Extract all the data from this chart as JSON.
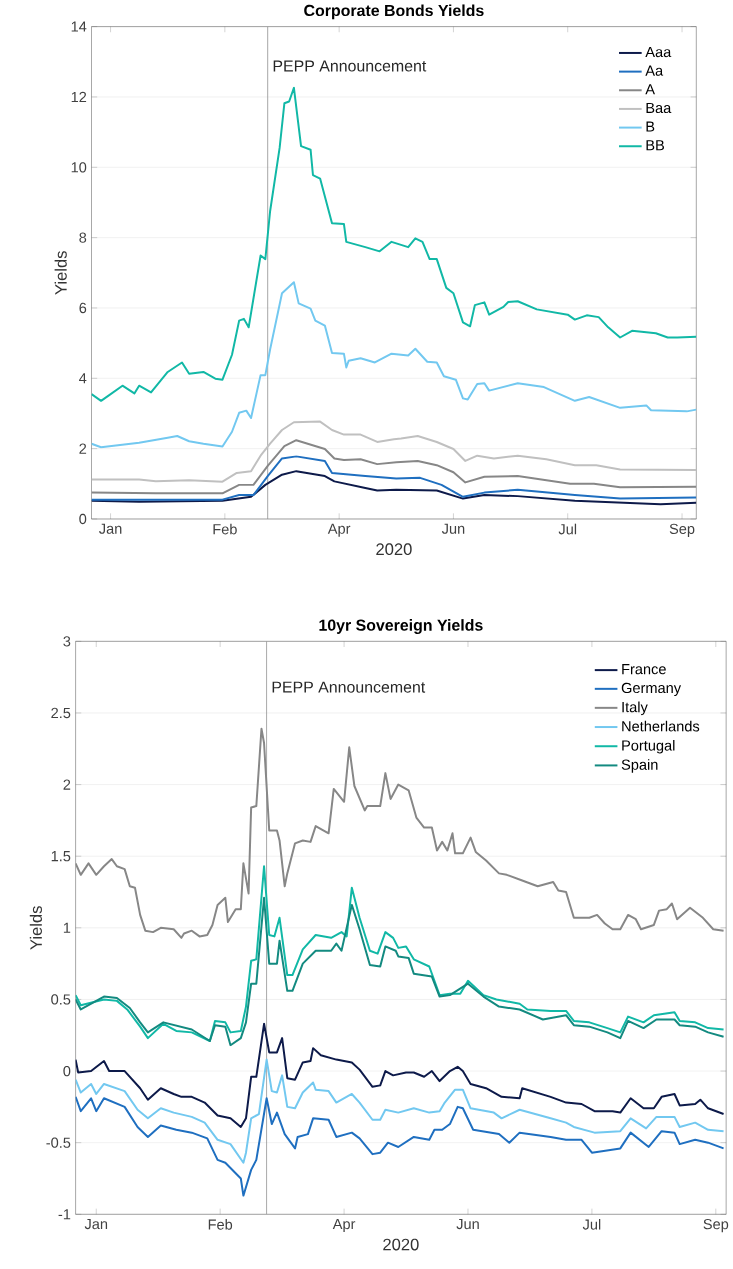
{
  "chart_data": [
    {
      "type": "line",
      "title": "Corporate Bonds Yields",
      "xlabel": "2020",
      "ylabel": "Yields",
      "xlim": [
        "2020-01-04",
        "2020-09-14"
      ],
      "xticks": [
        {
          "value": "2020-01-12",
          "label": "Jan"
        },
        {
          "value": "2020-02-29",
          "label": "Feb"
        },
        {
          "value": "2020-04-17",
          "label": "Apr"
        },
        {
          "value": "2020-06-04",
          "label": "Jun"
        },
        {
          "value": "2020-07-22",
          "label": "Jul"
        },
        {
          "value": "2020-09-08",
          "label": "Sep"
        }
      ],
      "ylim": [
        0,
        14
      ],
      "yticks": [
        0,
        2,
        4,
        6,
        8,
        10,
        12,
        14
      ],
      "grid": "y",
      "legend": "top right",
      "line_style": "solid",
      "ref_lines": [
        {
          "axis": "x",
          "value": "2020-03-18",
          "label": "PEPP Announcement",
          "color": "#8c8c8c"
        }
      ],
      "series": [
        {
          "name": "Aaa",
          "color": "#0d1a4a",
          "x": [
            "2020-01-04",
            "2020-01-24",
            "2020-02-28",
            "2020-03-11",
            "2020-03-17",
            "2020-03-24",
            "2020-03-30",
            "2020-04-11",
            "2020-04-15",
            "2020-04-28",
            "2020-05-03",
            "2020-05-11",
            "2020-05-28",
            "2020-06-08",
            "2020-06-17",
            "2020-07-01",
            "2020-07-25",
            "2020-08-30",
            "2020-09-14"
          ],
          "values": [
            0.52,
            0.49,
            0.52,
            0.63,
            0.97,
            1.26,
            1.36,
            1.22,
            1.07,
            0.88,
            0.81,
            0.83,
            0.81,
            0.58,
            0.68,
            0.65,
            0.52,
            0.42,
            0.46
          ]
        },
        {
          "name": "Aa",
          "color": "#1f6fc0",
          "x": [
            "2020-01-04",
            "2020-02-28",
            "2020-03-06",
            "2020-03-12",
            "2020-03-18",
            "2020-03-24",
            "2020-03-30",
            "2020-04-11",
            "2020-04-14",
            "2020-04-28",
            "2020-05-11",
            "2020-05-21",
            "2020-05-30",
            "2020-06-08",
            "2020-06-17",
            "2020-07-01",
            "2020-07-25",
            "2020-08-13",
            "2020-09-14"
          ],
          "values": [
            0.55,
            0.55,
            0.68,
            0.68,
            1.22,
            1.72,
            1.78,
            1.65,
            1.31,
            1.22,
            1.15,
            1.17,
            0.97,
            0.63,
            0.75,
            0.83,
            0.68,
            0.58,
            0.61
          ]
        },
        {
          "name": "A",
          "color": "#878787",
          "x": [
            "2020-01-04",
            "2020-01-31",
            "2020-02-28",
            "2020-03-06",
            "2020-03-12",
            "2020-03-18",
            "2020-03-25",
            "2020-03-30",
            "2020-04-11",
            "2020-04-15",
            "2020-04-19",
            "2020-04-26",
            "2020-05-03",
            "2020-05-11",
            "2020-05-20",
            "2020-05-28",
            "2020-06-04",
            "2020-06-09",
            "2020-06-17",
            "2020-07-01",
            "2020-07-23",
            "2020-08-02",
            "2020-08-13",
            "2020-09-14"
          ],
          "values": [
            0.75,
            0.73,
            0.73,
            0.97,
            0.97,
            1.51,
            2.07,
            2.24,
            1.99,
            1.72,
            1.68,
            1.7,
            1.56,
            1.61,
            1.65,
            1.53,
            1.33,
            1.04,
            1.2,
            1.22,
            1.0,
            1.0,
            0.9,
            0.92
          ]
        },
        {
          "name": "Baa",
          "color": "#c0c0c0",
          "x": [
            "2020-01-04",
            "2020-01-24",
            "2020-01-31",
            "2020-02-14",
            "2020-02-28",
            "2020-03-05",
            "2020-03-11",
            "2020-03-15",
            "2020-03-19",
            "2020-03-24",
            "2020-03-29",
            "2020-04-09",
            "2020-04-14",
            "2020-04-19",
            "2020-04-26",
            "2020-05-03",
            "2020-05-10",
            "2020-05-13",
            "2020-05-20",
            "2020-05-28",
            "2020-06-04",
            "2020-06-09",
            "2020-06-14",
            "2020-06-21",
            "2020-07-01",
            "2020-07-13",
            "2020-07-25",
            "2020-08-03",
            "2020-08-13",
            "2020-09-14"
          ],
          "values": [
            1.12,
            1.12,
            1.07,
            1.1,
            1.06,
            1.31,
            1.36,
            1.8,
            2.14,
            2.53,
            2.75,
            2.77,
            2.53,
            2.4,
            2.4,
            2.19,
            2.27,
            2.29,
            2.36,
            2.19,
            1.99,
            1.65,
            1.8,
            1.72,
            1.8,
            1.7,
            1.53,
            1.53,
            1.41,
            1.39
          ]
        },
        {
          "name": "B",
          "color": "#72c8f0",
          "x": [
            "2020-01-04",
            "2020-01-08",
            "2020-01-24",
            "2020-02-05",
            "2020-02-09",
            "2020-02-14",
            "2020-02-20",
            "2020-02-28",
            "2020-03-03",
            "2020-03-06",
            "2020-03-09",
            "2020-03-11",
            "2020-03-15",
            "2020-03-17",
            "2020-03-19",
            "2020-03-24",
            "2020-03-29",
            "2020-03-31",
            "2020-04-05",
            "2020-04-07",
            "2020-04-11",
            "2020-04-14",
            "2020-04-19",
            "2020-04-20",
            "2020-04-21",
            "2020-04-26",
            "2020-05-02",
            "2020-05-09",
            "2020-05-16",
            "2020-05-19",
            "2020-05-24",
            "2020-05-28",
            "2020-05-31",
            "2020-06-05",
            "2020-06-08",
            "2020-06-10",
            "2020-06-14",
            "2020-06-17",
            "2020-06-19",
            "2020-07-01",
            "2020-07-12",
            "2020-07-25",
            "2020-07-31",
            "2020-08-13",
            "2020-08-24",
            "2020-08-26",
            "2020-09-10",
            "2020-09-14"
          ],
          "values": [
            2.14,
            2.04,
            2.17,
            2.31,
            2.36,
            2.21,
            2.14,
            2.06,
            2.48,
            3.02,
            3.08,
            2.87,
            4.09,
            4.09,
            4.82,
            6.42,
            6.73,
            6.13,
            5.98,
            5.64,
            5.5,
            4.72,
            4.7,
            4.31,
            4.5,
            4.57,
            4.45,
            4.7,
            4.65,
            4.84,
            4.47,
            4.45,
            4.06,
            3.96,
            3.43,
            3.4,
            3.84,
            3.86,
            3.65,
            3.86,
            3.75,
            3.36,
            3.47,
            3.16,
            3.23,
            3.09,
            3.06,
            3.11
          ]
        },
        {
          "name": "BB",
          "color": "#11b8a6",
          "x": [
            "2020-01-04",
            "2020-01-08",
            "2020-01-11",
            "2020-01-17",
            "2020-01-22",
            "2020-01-24",
            "2020-01-29",
            "2020-02-05",
            "2020-02-11",
            "2020-02-14",
            "2020-02-20",
            "2020-02-25",
            "2020-02-28",
            "2020-03-03",
            "2020-03-06",
            "2020-03-08",
            "2020-03-10",
            "2020-03-15",
            "2020-03-17",
            "2020-03-19",
            "2020-03-23",
            "2020-03-25",
            "2020-03-27",
            "2020-03-29",
            "2020-04-01",
            "2020-04-05",
            "2020-04-06",
            "2020-04-09",
            "2020-04-14",
            "2020-04-19",
            "2020-04-20",
            "2020-04-28",
            "2020-05-04",
            "2020-05-09",
            "2020-05-16",
            "2020-05-19",
            "2020-05-22",
            "2020-05-25",
            "2020-05-28",
            "2020-06-01",
            "2020-06-04",
            "2020-06-08",
            "2020-06-11",
            "2020-06-13",
            "2020-06-17",
            "2020-06-19",
            "2020-06-25",
            "2020-06-27",
            "2020-07-01",
            "2020-07-09",
            "2020-07-22",
            "2020-07-25",
            "2020-07-30",
            "2020-08-04",
            "2020-08-08",
            "2020-08-13",
            "2020-08-18",
            "2020-08-28",
            "2020-09-02",
            "2020-09-06",
            "2020-09-14"
          ],
          "values": [
            3.55,
            3.36,
            3.5,
            3.79,
            3.57,
            3.79,
            3.6,
            4.18,
            4.45,
            4.13,
            4.18,
            3.99,
            3.96,
            4.67,
            5.64,
            5.69,
            5.45,
            7.49,
            7.39,
            8.75,
            10.55,
            11.82,
            11.87,
            12.26,
            10.6,
            10.5,
            9.78,
            9.68,
            8.41,
            8.39,
            7.88,
            7.73,
            7.61,
            7.88,
            7.73,
            7.98,
            7.88,
            7.39,
            7.39,
            6.57,
            6.42,
            5.59,
            5.48,
            6.08,
            6.16,
            5.81,
            6.03,
            6.17,
            6.19,
            5.96,
            5.81,
            5.67,
            5.79,
            5.74,
            5.45,
            5.16,
            5.35,
            5.28,
            5.16,
            5.16,
            5.18
          ]
        }
      ]
    },
    {
      "type": "line",
      "title": "10yr Sovereign Yields",
      "xlabel": "2020",
      "ylabel": "Yields",
      "xlim": [
        "2020-01-04",
        "2020-09-12"
      ],
      "xticks": [
        {
          "value": "2020-01-12",
          "label": "Jan"
        },
        {
          "value": "2020-02-29",
          "label": "Feb"
        },
        {
          "value": "2020-04-17",
          "label": "Apr"
        },
        {
          "value": "2020-06-04",
          "label": "Jun"
        },
        {
          "value": "2020-07-22",
          "label": "Jul"
        },
        {
          "value": "2020-09-08",
          "label": "Sep"
        }
      ],
      "ylim": [
        -1,
        3
      ],
      "yticks": [
        -1,
        -0.5,
        0,
        0.5,
        1,
        1.5,
        2,
        2.5,
        3
      ],
      "grid": "y",
      "legend": "top right",
      "line_style": "solid",
      "ref_lines": [
        {
          "axis": "x",
          "value": "2020-03-18",
          "label": "PEPP Announcement",
          "color": "#8c8c8c"
        }
      ],
      "series": [
        {
          "name": "France",
          "color": "#0d1a4a",
          "x": [
            "2020-01-04",
            "2020-01-05",
            "2020-01-10",
            "2020-01-15",
            "2020-01-17",
            "2020-01-23",
            "2020-01-29",
            "2020-02-01",
            "2020-02-06",
            "2020-02-11",
            "2020-02-14",
            "2020-02-18",
            "2020-02-23",
            "2020-02-28",
            "2020-03-04",
            "2020-03-08",
            "2020-03-10",
            "2020-03-12",
            "2020-03-14",
            "2020-03-17",
            "2020-03-19",
            "2020-03-22",
            "2020-03-24",
            "2020-03-26",
            "2020-03-29",
            "2020-04-01",
            "2020-04-04",
            "2020-04-05",
            "2020-04-08",
            "2020-04-14",
            "2020-04-20",
            "2020-04-23",
            "2020-04-28",
            "2020-05-01",
            "2020-05-03",
            "2020-05-06",
            "2020-05-11",
            "2020-05-14",
            "2020-05-18",
            "2020-05-21",
            "2020-05-24",
            "2020-05-28",
            "2020-05-31",
            "2020-06-02",
            "2020-06-05",
            "2020-06-11",
            "2020-06-17",
            "2020-06-24",
            "2020-06-25",
            "2020-07-06",
            "2020-07-12",
            "2020-07-18",
            "2020-07-23",
            "2020-07-30",
            "2020-08-02",
            "2020-08-06",
            "2020-08-11",
            "2020-08-15",
            "2020-08-18",
            "2020-08-23",
            "2020-08-25",
            "2020-08-31",
            "2020-09-02",
            "2020-09-05",
            "2020-09-11"
          ],
          "values": [
            0.08,
            -0.01,
            0.0,
            0.07,
            0.0,
            0.0,
            -0.12,
            -0.2,
            -0.12,
            -0.16,
            -0.18,
            -0.18,
            -0.22,
            -0.31,
            -0.33,
            -0.39,
            -0.33,
            -0.04,
            -0.04,
            0.33,
            0.13,
            0.13,
            0.23,
            -0.05,
            -0.06,
            0.06,
            0.07,
            0.16,
            0.11,
            0.08,
            0.06,
            0.01,
            -0.11,
            -0.1,
            0.0,
            -0.03,
            -0.01,
            -0.01,
            -0.04,
            0.0,
            -0.07,
            0.0,
            0.03,
            0.0,
            -0.09,
            -0.12,
            -0.18,
            -0.19,
            -0.12,
            -0.18,
            -0.22,
            -0.23,
            -0.28,
            -0.28,
            -0.29,
            -0.19,
            -0.26,
            -0.26,
            -0.18,
            -0.16,
            -0.24,
            -0.23,
            -0.2,
            -0.26,
            -0.3
          ]
        },
        {
          "name": "Germany",
          "color": "#1f6fc0",
          "x": [
            "2020-01-04",
            "2020-01-06",
            "2020-01-10",
            "2020-01-12",
            "2020-01-15",
            "2020-01-23",
            "2020-01-28",
            "2020-02-01",
            "2020-02-06",
            "2020-02-12",
            "2020-02-18",
            "2020-02-24",
            "2020-02-28",
            "2020-03-02",
            "2020-03-08",
            "2020-03-09",
            "2020-03-12",
            "2020-03-14",
            "2020-03-18",
            "2020-03-20",
            "2020-03-22",
            "2020-03-25",
            "2020-03-29",
            "2020-03-30",
            "2020-04-03",
            "2020-04-05",
            "2020-04-11",
            "2020-04-14",
            "2020-04-20",
            "2020-04-23",
            "2020-04-28",
            "2020-05-01",
            "2020-05-04",
            "2020-05-08",
            "2020-05-14",
            "2020-05-20",
            "2020-05-22",
            "2020-05-25",
            "2020-05-28",
            "2020-05-31",
            "2020-06-02",
            "2020-06-06",
            "2020-06-16",
            "2020-06-20",
            "2020-06-24",
            "2020-07-06",
            "2020-07-12",
            "2020-07-18",
            "2020-07-22",
            "2020-08-02",
            "2020-08-06",
            "2020-08-13",
            "2020-08-18",
            "2020-08-23",
            "2020-08-25",
            "2020-08-31",
            "2020-09-05",
            "2020-09-11"
          ],
          "values": [
            -0.18,
            -0.28,
            -0.19,
            -0.28,
            -0.19,
            -0.25,
            -0.39,
            -0.46,
            -0.38,
            -0.41,
            -0.43,
            -0.47,
            -0.62,
            -0.64,
            -0.75,
            -0.87,
            -0.69,
            -0.62,
            -0.19,
            -0.37,
            -0.29,
            -0.44,
            -0.54,
            -0.46,
            -0.44,
            -0.33,
            -0.34,
            -0.46,
            -0.43,
            -0.47,
            -0.58,
            -0.57,
            -0.5,
            -0.53,
            -0.46,
            -0.48,
            -0.41,
            -0.41,
            -0.37,
            -0.25,
            -0.26,
            -0.41,
            -0.44,
            -0.5,
            -0.43,
            -0.46,
            -0.48,
            -0.48,
            -0.57,
            -0.54,
            -0.43,
            -0.53,
            -0.42,
            -0.43,
            -0.51,
            -0.48,
            -0.5,
            -0.54
          ]
        },
        {
          "name": "Italy",
          "color": "#878787",
          "x": [
            "2020-01-04",
            "2020-01-06",
            "2020-01-09",
            "2020-01-12",
            "2020-01-15",
            "2020-01-18",
            "2020-01-20",
            "2020-01-23",
            "2020-01-25",
            "2020-01-27",
            "2020-01-29",
            "2020-01-31",
            "2020-02-03",
            "2020-02-06",
            "2020-02-11",
            "2020-02-14",
            "2020-02-15",
            "2020-02-18",
            "2020-02-21",
            "2020-02-24",
            "2020-02-26",
            "2020-02-28",
            "2020-03-02",
            "2020-03-03",
            "2020-03-06",
            "2020-03-08",
            "2020-03-09",
            "2020-03-11",
            "2020-03-12",
            "2020-03-14",
            "2020-03-16",
            "2020-03-17",
            "2020-03-19",
            "2020-03-22",
            "2020-03-23",
            "2020-03-25",
            "2020-03-26",
            "2020-03-29",
            "2020-04-01",
            "2020-04-04",
            "2020-04-06",
            "2020-04-11",
            "2020-04-13",
            "2020-04-17",
            "2020-04-19",
            "2020-04-21",
            "2020-04-25",
            "2020-04-26",
            "2020-05-01",
            "2020-05-03",
            "2020-05-05",
            "2020-05-08",
            "2020-05-12",
            "2020-05-15",
            "2020-05-18",
            "2020-05-21",
            "2020-05-23",
            "2020-05-25",
            "2020-05-27",
            "2020-05-29",
            "2020-05-30",
            "2020-06-02",
            "2020-06-05",
            "2020-06-07",
            "2020-06-11",
            "2020-06-16",
            "2020-06-19",
            "2020-06-25",
            "2020-07-01",
            "2020-07-07",
            "2020-07-09",
            "2020-07-12",
            "2020-07-15",
            "2020-07-21",
            "2020-07-24",
            "2020-07-27",
            "2020-07-30",
            "2020-08-02",
            "2020-08-05",
            "2020-08-08",
            "2020-08-10",
            "2020-08-15",
            "2020-08-17",
            "2020-08-20",
            "2020-08-22",
            "2020-08-24",
            "2020-08-29",
            "2020-09-03",
            "2020-09-07",
            "2020-09-11"
          ],
          "values": [
            1.45,
            1.37,
            1.45,
            1.37,
            1.43,
            1.48,
            1.43,
            1.41,
            1.29,
            1.28,
            1.09,
            0.98,
            0.97,
            1.0,
            0.99,
            0.93,
            0.96,
            0.98,
            0.94,
            0.95,
            1.02,
            1.16,
            1.21,
            1.04,
            1.13,
            1.13,
            1.45,
            1.24,
            1.84,
            1.85,
            2.39,
            2.29,
            1.68,
            1.68,
            1.61,
            1.29,
            1.38,
            1.59,
            1.61,
            1.6,
            1.71,
            1.66,
            1.97,
            1.88,
            2.26,
            1.99,
            1.82,
            1.85,
            1.85,
            2.08,
            1.9,
            2.0,
            1.96,
            1.77,
            1.7,
            1.7,
            1.54,
            1.6,
            1.54,
            1.66,
            1.52,
            1.52,
            1.63,
            1.53,
            1.47,
            1.38,
            1.37,
            1.33,
            1.29,
            1.32,
            1.26,
            1.25,
            1.07,
            1.07,
            1.09,
            1.03,
            0.99,
            0.99,
            1.09,
            1.06,
            0.99,
            1.02,
            1.12,
            1.13,
            1.17,
            1.06,
            1.14,
            1.07,
            0.99,
            0.98
          ]
        },
        {
          "name": "Netherlands",
          "color": "#72c8f0",
          "x": [
            "2020-01-04",
            "2020-01-06",
            "2020-01-10",
            "2020-01-12",
            "2020-01-15",
            "2020-01-23",
            "2020-01-28",
            "2020-02-01",
            "2020-02-06",
            "2020-02-11",
            "2020-02-18",
            "2020-02-23",
            "2020-02-28",
            "2020-03-04",
            "2020-03-09",
            "2020-03-10",
            "2020-03-12",
            "2020-03-15",
            "2020-03-18",
            "2020-03-20",
            "2020-03-22",
            "2020-03-24",
            "2020-03-26",
            "2020-03-29",
            "2020-04-01",
            "2020-04-05",
            "2020-04-06",
            "2020-04-11",
            "2020-04-14",
            "2020-04-20",
            "2020-04-23",
            "2020-04-28",
            "2020-05-01",
            "2020-05-03",
            "2020-05-08",
            "2020-05-14",
            "2020-05-20",
            "2020-05-24",
            "2020-05-26",
            "2020-05-30",
            "2020-06-02",
            "2020-06-05",
            "2020-06-14",
            "2020-06-17",
            "2020-06-24",
            "2020-07-06",
            "2020-07-12",
            "2020-07-15",
            "2020-07-23",
            "2020-08-02",
            "2020-08-06",
            "2020-08-12",
            "2020-08-16",
            "2020-08-23",
            "2020-08-25",
            "2020-08-31",
            "2020-09-05",
            "2020-09-11"
          ],
          "values": [
            -0.06,
            -0.15,
            -0.09,
            -0.16,
            -0.09,
            -0.14,
            -0.27,
            -0.33,
            -0.26,
            -0.29,
            -0.32,
            -0.36,
            -0.48,
            -0.51,
            -0.64,
            -0.57,
            -0.33,
            -0.3,
            0.08,
            -0.14,
            -0.15,
            -0.03,
            -0.25,
            -0.26,
            -0.15,
            -0.08,
            -0.13,
            -0.14,
            -0.22,
            -0.16,
            -0.22,
            -0.34,
            -0.34,
            -0.27,
            -0.29,
            -0.26,
            -0.29,
            -0.28,
            -0.22,
            -0.13,
            -0.13,
            -0.26,
            -0.29,
            -0.33,
            -0.27,
            -0.33,
            -0.36,
            -0.39,
            -0.43,
            -0.42,
            -0.33,
            -0.4,
            -0.32,
            -0.32,
            -0.39,
            -0.36,
            -0.41,
            -0.42
          ]
        },
        {
          "name": "Portugal",
          "color": "#11b8a6",
          "x": [
            "2020-01-04",
            "2020-01-06",
            "2020-01-15",
            "2020-01-20",
            "2020-01-24",
            "2020-01-29",
            "2020-02-01",
            "2020-02-07",
            "2020-02-12",
            "2020-02-18",
            "2020-02-25",
            "2020-02-27",
            "2020-03-02",
            "2020-03-04",
            "2020-03-08",
            "2020-03-10",
            "2020-03-12",
            "2020-03-14",
            "2020-03-17",
            "2020-03-19",
            "2020-03-21",
            "2020-03-23",
            "2020-03-26",
            "2020-03-28",
            "2020-04-01",
            "2020-04-06",
            "2020-04-12",
            "2020-04-16",
            "2020-04-18",
            "2020-04-20",
            "2020-04-23",
            "2020-04-27",
            "2020-04-30",
            "2020-05-03",
            "2020-05-06",
            "2020-05-08",
            "2020-05-11",
            "2020-05-14",
            "2020-05-20",
            "2020-05-24",
            "2020-05-28",
            "2020-06-01",
            "2020-06-04",
            "2020-06-10",
            "2020-06-15",
            "2020-06-24",
            "2020-06-27",
            "2020-07-06",
            "2020-07-12",
            "2020-07-15",
            "2020-07-21",
            "2020-07-28",
            "2020-08-02",
            "2020-08-05",
            "2020-08-11",
            "2020-08-15",
            "2020-08-23",
            "2020-08-25",
            "2020-08-31",
            "2020-09-05",
            "2020-09-11"
          ],
          "values": [
            0.53,
            0.46,
            0.5,
            0.49,
            0.43,
            0.31,
            0.23,
            0.33,
            0.28,
            0.27,
            0.21,
            0.35,
            0.34,
            0.27,
            0.28,
            0.45,
            0.77,
            0.78,
            1.43,
            0.95,
            0.94,
            1.07,
            0.67,
            0.67,
            0.85,
            0.95,
            0.93,
            0.97,
            0.94,
            1.28,
            1.07,
            0.84,
            0.82,
            0.97,
            0.93,
            0.86,
            0.87,
            0.78,
            0.73,
            0.53,
            0.54,
            0.54,
            0.63,
            0.53,
            0.5,
            0.47,
            0.43,
            0.42,
            0.42,
            0.35,
            0.34,
            0.3,
            0.27,
            0.38,
            0.34,
            0.39,
            0.41,
            0.35,
            0.34,
            0.3,
            0.29
          ]
        },
        {
          "name": "Spain",
          "color": "#138a80",
          "x": [
            "2020-01-04",
            "2020-01-06",
            "2020-01-15",
            "2020-01-20",
            "2020-01-25",
            "2020-01-29",
            "2020-02-01",
            "2020-02-07",
            "2020-02-18",
            "2020-02-25",
            "2020-02-27",
            "2020-03-02",
            "2020-03-04",
            "2020-03-08",
            "2020-03-10",
            "2020-03-12",
            "2020-03-14",
            "2020-03-17",
            "2020-03-19",
            "2020-03-22",
            "2020-03-23",
            "2020-03-26",
            "2020-03-28",
            "2020-04-01",
            "2020-04-06",
            "2020-04-12",
            "2020-04-14",
            "2020-04-16",
            "2020-04-20",
            "2020-04-23",
            "2020-04-27",
            "2020-05-01",
            "2020-05-03",
            "2020-05-07",
            "2020-05-08",
            "2020-05-12",
            "2020-05-14",
            "2020-05-21",
            "2020-05-24",
            "2020-05-28",
            "2020-06-04",
            "2020-06-10",
            "2020-06-16",
            "2020-06-24",
            "2020-07-03",
            "2020-07-12",
            "2020-07-15",
            "2020-07-21",
            "2020-07-28",
            "2020-08-02",
            "2020-08-05",
            "2020-08-11",
            "2020-08-16",
            "2020-08-23",
            "2020-08-25",
            "2020-08-31",
            "2020-09-05",
            "2020-09-11"
          ],
          "values": [
            0.5,
            0.43,
            0.52,
            0.51,
            0.44,
            0.34,
            0.27,
            0.34,
            0.29,
            0.21,
            0.32,
            0.31,
            0.18,
            0.23,
            0.34,
            0.61,
            0.61,
            1.21,
            0.75,
            0.75,
            0.91,
            0.56,
            0.56,
            0.75,
            0.84,
            0.84,
            0.89,
            0.84,
            1.16,
            0.99,
            0.74,
            0.73,
            0.87,
            0.84,
            0.8,
            0.79,
            0.68,
            0.66,
            0.52,
            0.53,
            0.61,
            0.52,
            0.45,
            0.43,
            0.36,
            0.39,
            0.32,
            0.31,
            0.27,
            0.23,
            0.35,
            0.3,
            0.36,
            0.36,
            0.32,
            0.31,
            0.27,
            0.24
          ]
        }
      ]
    }
  ]
}
